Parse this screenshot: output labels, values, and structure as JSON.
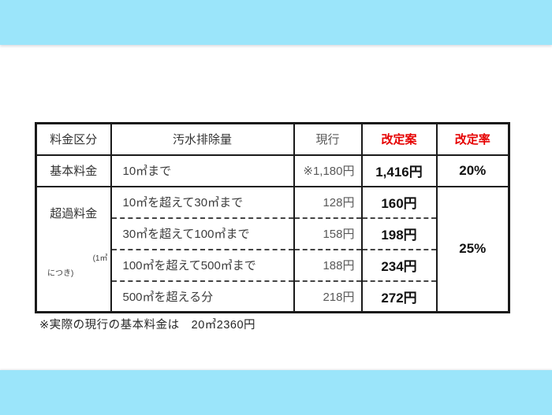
{
  "page": {
    "background": "#ffffff",
    "accent_bar_color": "#9be5fa",
    "highlight_red": "#e60000"
  },
  "table": {
    "header": {
      "category": "料金区分",
      "discharge": "汚水排除量",
      "current": "現行",
      "revised": "改定案",
      "rate": "改定率"
    },
    "basic": {
      "label": "基本料金",
      "range": "10㎥まで",
      "current": "※1,180円",
      "revised": "1,416円",
      "rate": "20%"
    },
    "excess": {
      "label": "超過料金",
      "unit_note_line1": "(1㎥",
      "unit_note_line2": "につき)",
      "rate": "25%",
      "rows": [
        {
          "range": "10㎥を超えて30㎥まで",
          "current": "128円",
          "revised": "160円"
        },
        {
          "range": "30㎥を超えて100㎥まで",
          "current": "158円",
          "revised": "198円"
        },
        {
          "range": "100㎥を超えて500㎥まで",
          "current": "188円",
          "revised": "234円"
        },
        {
          "range": "500㎥を超える分",
          "current": "218円",
          "revised": "272円"
        }
      ]
    }
  },
  "footnote": "※実際の現行の基本料金は　20㎥2360円"
}
